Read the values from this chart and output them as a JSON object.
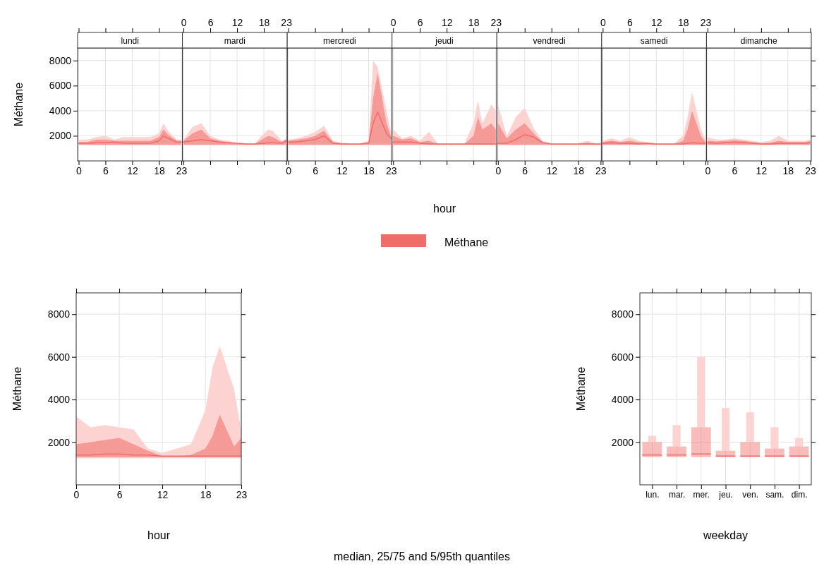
{
  "chart_data": [
    {
      "type": "line",
      "title": "lundi",
      "ylabel": "Méthane",
      "xlim": [
        0,
        23
      ],
      "xticks": [
        0,
        6,
        12,
        18,
        23
      ],
      "ylim": [
        0,
        9000
      ],
      "yticks": [
        2000,
        4000,
        6000,
        8000
      ],
      "grid": true,
      "series": [
        {
          "color": "#fcd3d1",
          "x": [
            0,
            2,
            4,
            6,
            8,
            10,
            12,
            14,
            16,
            18,
            19,
            20,
            22,
            23
          ],
          "values": [
            null,
            null,
            null,
            null,
            null,
            null,
            null,
            null,
            null,
            null,
            null,
            null,
            null,
            null
          ],
          "lower": [
            1250,
            1250,
            1250,
            1250,
            1250,
            1250,
            1250,
            1250,
            1250,
            1250,
            1250,
            1250,
            1250,
            1250
          ],
          "upper": [
            1700,
            1700,
            1900,
            2000,
            1700,
            1900,
            1900,
            1900,
            1900,
            2200,
            3000,
            2400,
            1700,
            1700
          ]
        },
        {
          "color": "#f06c68",
          "x": [
            0,
            2,
            4,
            6,
            8,
            10,
            12,
            14,
            16,
            18,
            19,
            20,
            22,
            23
          ],
          "values": [
            1400,
            1400,
            1450,
            1450,
            1500,
            1400,
            1400,
            1400,
            1400,
            1600,
            2000,
            1800,
            1500,
            1500
          ],
          "lower": [
            1300,
            1300,
            1300,
            1300,
            1300,
            1300,
            1300,
            1300,
            1300,
            1300,
            1300,
            1300,
            1300,
            1300
          ],
          "upper": [
            1500,
            1500,
            1700,
            1700,
            1600,
            1600,
            1600,
            1600,
            1600,
            1900,
            2500,
            2100,
            1600,
            1600
          ]
        }
      ]
    },
    {
      "type": "line",
      "title": "mardi",
      "xlim": [
        0,
        23
      ],
      "xticks": [
        0,
        6,
        12,
        18,
        23
      ],
      "ylim": [
        0,
        9000
      ],
      "yticks": [
        2000,
        4000,
        6000,
        8000
      ],
      "tick_labels": "x",
      "grid": true,
      "series": [
        {
          "color": "#fcd3d1",
          "x": [
            0,
            2,
            4,
            6,
            8,
            10,
            12,
            14,
            16,
            18,
            19,
            20,
            22,
            23
          ],
          "values": [
            null,
            null,
            null,
            null,
            null,
            null,
            null,
            null,
            null,
            null,
            null,
            null,
            null,
            null
          ],
          "lower": [
            1250,
            1250,
            1250,
            1250,
            1250,
            1250,
            1250,
            1250,
            1250,
            1250,
            1250,
            1250,
            1250,
            1250
          ],
          "upper": [
            1700,
            2700,
            3000,
            2000,
            1700,
            1600,
            1450,
            1400,
            1400,
            2200,
            2500,
            2400,
            1600,
            1800
          ]
        },
        {
          "color": "#f06c68",
          "x": [
            0,
            2,
            4,
            6,
            8,
            10,
            12,
            14,
            16,
            18,
            19,
            20,
            22,
            23
          ],
          "values": [
            1500,
            1600,
            1700,
            1600,
            1500,
            1450,
            1400,
            1350,
            1350,
            1400,
            1450,
            1450,
            1400,
            1600
          ],
          "lower": [
            1300,
            1300,
            1300,
            1300,
            1300,
            1300,
            1300,
            1300,
            1300,
            1300,
            1300,
            1300,
            1300,
            1300
          ],
          "upper": [
            1600,
            2200,
            2500,
            1800,
            1600,
            1500,
            1400,
            1350,
            1350,
            1800,
            2000,
            1900,
            1500,
            1700
          ]
        }
      ]
    },
    {
      "type": "line",
      "title": "mercredi",
      "xlim": [
        0,
        23
      ],
      "xticks": [
        0,
        6,
        12,
        18,
        23
      ],
      "ylim": [
        0,
        9000
      ],
      "yticks": [
        2000,
        4000,
        6000,
        8000
      ],
      "tick_labels": "x",
      "grid": true,
      "series": [
        {
          "color": "#fcd3d1",
          "x": [
            0,
            2,
            4,
            6,
            8,
            10,
            12,
            14,
            16,
            18,
            19,
            20,
            22,
            23
          ],
          "values": [
            null,
            null,
            null,
            null,
            null,
            null,
            null,
            null,
            null,
            null,
            null,
            null,
            null,
            null
          ],
          "lower": [
            1250,
            1250,
            1250,
            1250,
            1250,
            1250,
            1250,
            1250,
            1250,
            1250,
            1250,
            1250,
            1250,
            1250
          ],
          "upper": [
            1700,
            1800,
            2000,
            2300,
            2800,
            1600,
            1450,
            1400,
            1400,
            1600,
            8000,
            7500,
            4000,
            2300
          ]
        },
        {
          "color": "#f06c68",
          "x": [
            0,
            2,
            4,
            6,
            8,
            10,
            12,
            14,
            16,
            18,
            19,
            20,
            22,
            23
          ],
          "values": [
            1500,
            1500,
            1600,
            1700,
            2000,
            1400,
            1350,
            1350,
            1350,
            1400,
            3000,
            3900,
            2200,
            1800
          ],
          "lower": [
            1300,
            1300,
            1300,
            1300,
            1300,
            1300,
            1300,
            1300,
            1300,
            1300,
            1300,
            1300,
            1300,
            1300
          ],
          "upper": [
            1600,
            1700,
            1800,
            2000,
            2400,
            1500,
            1400,
            1350,
            1350,
            1500,
            5000,
            7000,
            3000,
            2000
          ]
        }
      ]
    },
    {
      "type": "line",
      "title": "jeudi",
      "xlabel": "hour",
      "xlim": [
        0,
        23
      ],
      "xticks": [
        0,
        6,
        12,
        18,
        23
      ],
      "ylim": [
        0,
        9000
      ],
      "yticks": [
        2000,
        4000,
        6000,
        8000
      ],
      "tick_labels": "x",
      "grid": true,
      "legend": "bottom",
      "series": [
        {
          "color": "#fcd3d1",
          "x": [
            0,
            2,
            4,
            6,
            8,
            10,
            12,
            14,
            16,
            18,
            19,
            20,
            22,
            23
          ],
          "values": [
            null,
            null,
            null,
            null,
            null,
            null,
            null,
            null,
            null,
            null,
            null,
            null,
            null,
            null
          ],
          "lower": [
            1250,
            1250,
            1250,
            1250,
            1250,
            1250,
            1250,
            1250,
            1250,
            1250,
            1250,
            1250,
            1250,
            1250
          ],
          "upper": [
            2500,
            1800,
            2000,
            1600,
            2300,
            1400,
            1400,
            1400,
            1400,
            3000,
            4800,
            3000,
            4500,
            4000
          ]
        },
        {
          "name": "Méthane",
          "color": "#f06c68",
          "x": [
            0,
            2,
            4,
            6,
            8,
            10,
            12,
            14,
            16,
            18,
            19,
            20,
            22,
            23
          ],
          "values": [
            1500,
            1500,
            1500,
            1400,
            1350,
            1350,
            1350,
            1350,
            1350,
            1350,
            1350,
            1350,
            1350,
            1350
          ],
          "lower": [
            1300,
            1300,
            1300,
            1300,
            1300,
            1300,
            1300,
            1300,
            1300,
            1300,
            1300,
            1300,
            1300,
            1300
          ],
          "upper": [
            2000,
            1700,
            1800,
            1500,
            1600,
            1350,
            1350,
            1350,
            1350,
            2000,
            3500,
            2500,
            3000,
            2500
          ]
        }
      ]
    },
    {
      "type": "line",
      "title": "vendredi",
      "xlim": [
        0,
        23
      ],
      "xticks": [
        0,
        6,
        12,
        18,
        23
      ],
      "ylim": [
        0,
        9000
      ],
      "yticks": [
        2000,
        4000,
        6000,
        8000
      ],
      "tick_labels": "x",
      "grid": true,
      "series": [
        {
          "color": "#fcd3d1",
          "x": [
            0,
            2,
            4,
            6,
            8,
            10,
            12,
            14,
            16,
            18,
            19,
            20,
            22,
            23
          ],
          "values": [
            null,
            null,
            null,
            null,
            null,
            null,
            null,
            null,
            null,
            null,
            null,
            null,
            null,
            null
          ],
          "lower": [
            1250,
            1250,
            1250,
            1250,
            1250,
            1250,
            1250,
            1250,
            1250,
            1250,
            1250,
            1250,
            1250,
            1250
          ],
          "upper": [
            4500,
            2000,
            3500,
            4200,
            2600,
            1600,
            1400,
            1400,
            1400,
            1400,
            1500,
            1600,
            1400,
            1400
          ]
        },
        {
          "color": "#f06c68",
          "x": [
            0,
            2,
            4,
            6,
            8,
            10,
            12,
            14,
            16,
            18,
            19,
            20,
            22,
            23
          ],
          "values": [
            1400,
            1400,
            1700,
            2100,
            1900,
            1450,
            1350,
            1350,
            1350,
            1350,
            1350,
            1350,
            1350,
            1350
          ],
          "lower": [
            1300,
            1300,
            1300,
            1300,
            1300,
            1300,
            1300,
            1300,
            1300,
            1300,
            1300,
            1300,
            1300,
            1300
          ],
          "upper": [
            3000,
            1800,
            2500,
            3000,
            2200,
            1500,
            1350,
            1350,
            1350,
            1350,
            1400,
            1450,
            1350,
            1350
          ]
        }
      ]
    },
    {
      "type": "line",
      "title": "samedi",
      "xlim": [
        0,
        23
      ],
      "xticks": [
        0,
        6,
        12,
        18,
        23
      ],
      "ylim": [
        0,
        9000
      ],
      "yticks": [
        2000,
        4000,
        6000,
        8000
      ],
      "tick_labels": "x",
      "grid": true,
      "series": [
        {
          "color": "#fcd3d1",
          "x": [
            0,
            2,
            4,
            6,
            8,
            10,
            12,
            14,
            16,
            18,
            19,
            20,
            22,
            23
          ],
          "values": [
            null,
            null,
            null,
            null,
            null,
            null,
            null,
            null,
            null,
            null,
            null,
            null,
            null,
            null
          ],
          "lower": [
            1250,
            1250,
            1250,
            1250,
            1250,
            1250,
            1250,
            1250,
            1250,
            1250,
            1250,
            1250,
            1250,
            1250
          ],
          "upper": [
            1600,
            1800,
            1600,
            1900,
            1600,
            1500,
            1400,
            1400,
            1400,
            2000,
            3500,
            5500,
            2500,
            1700
          ]
        },
        {
          "color": "#f06c68",
          "x": [
            0,
            2,
            4,
            6,
            8,
            10,
            12,
            14,
            16,
            18,
            19,
            20,
            22,
            23
          ],
          "values": [
            1400,
            1450,
            1400,
            1400,
            1350,
            1400,
            1350,
            1350,
            1350,
            1350,
            1400,
            1450,
            1400,
            1400
          ],
          "lower": [
            1300,
            1300,
            1300,
            1300,
            1300,
            1300,
            1300,
            1300,
            1300,
            1300,
            1300,
            1300,
            1300,
            1300
          ],
          "upper": [
            1500,
            1600,
            1500,
            1600,
            1500,
            1400,
            1350,
            1350,
            1350,
            1600,
            2500,
            4000,
            2000,
            1500
          ]
        }
      ]
    },
    {
      "type": "line",
      "title": "dimanche",
      "xlim": [
        0,
        23
      ],
      "xticks": [
        0,
        6,
        12,
        18,
        23
      ],
      "ylim": [
        0,
        9000
      ],
      "yticks": [
        2000,
        4000,
        6000,
        8000
      ],
      "tick_labels": "x",
      "grid": true,
      "series": [
        {
          "color": "#fcd3d1",
          "x": [
            0,
            2,
            4,
            6,
            8,
            10,
            12,
            14,
            16,
            18,
            19,
            20,
            22,
            23
          ],
          "values": [
            null,
            null,
            null,
            null,
            null,
            null,
            null,
            null,
            null,
            null,
            null,
            null,
            null,
            null
          ],
          "lower": [
            1250,
            1250,
            1250,
            1250,
            1250,
            1250,
            1250,
            1250,
            1250,
            1250,
            1250,
            1250,
            1250,
            1250
          ],
          "upper": [
            1900,
            1700,
            1700,
            1800,
            1700,
            1600,
            1500,
            1600,
            2000,
            1600,
            1600,
            1600,
            1600,
            1700
          ]
        },
        {
          "color": "#f06c68",
          "x": [
            0,
            2,
            4,
            6,
            8,
            10,
            12,
            14,
            16,
            18,
            19,
            20,
            22,
            23
          ],
          "values": [
            1450,
            1400,
            1450,
            1500,
            1450,
            1400,
            1350,
            1350,
            1400,
            1400,
            1400,
            1400,
            1400,
            1450
          ],
          "lower": [
            1300,
            1300,
            1300,
            1300,
            1300,
            1300,
            1300,
            1300,
            1300,
            1300,
            1300,
            1300,
            1300,
            1300
          ],
          "upper": [
            1600,
            1550,
            1600,
            1650,
            1600,
            1500,
            1400,
            1450,
            1600,
            1500,
            1500,
            1500,
            1500,
            1600
          ]
        }
      ]
    },
    {
      "type": "line",
      "xlabel": "hour",
      "ylabel": "Méthane",
      "xlim": [
        0,
        23
      ],
      "xticks": [
        0,
        6,
        12,
        18,
        23
      ],
      "ylim": [
        0,
        9000
      ],
      "yticks": [
        2000,
        4000,
        6000,
        8000
      ],
      "grid": true,
      "annotations": [
        "median, 25/75 and 5/95th quantiles"
      ],
      "series": [
        {
          "color": "#fcd3d1",
          "x": [
            0,
            2,
            4,
            6,
            8,
            10,
            12,
            14,
            16,
            18,
            19,
            20,
            22,
            23
          ],
          "values": [
            null,
            null,
            null,
            null,
            null,
            null,
            null,
            null,
            null,
            null,
            null,
            null,
            null,
            null
          ],
          "lower": [
            1250,
            1250,
            1250,
            1250,
            1250,
            1250,
            1250,
            1250,
            1250,
            1250,
            1250,
            1250,
            1250,
            1250
          ],
          "upper": [
            3200,
            2700,
            2800,
            2700,
            2600,
            1700,
            1500,
            1700,
            1900,
            3500,
            5500,
            6500,
            4500,
            2500
          ]
        },
        {
          "color": "#f06c68",
          "x": [
            0,
            2,
            4,
            6,
            8,
            10,
            12,
            14,
            16,
            18,
            19,
            20,
            22,
            23
          ],
          "values": [
            1400,
            1400,
            1450,
            1450,
            1400,
            1400,
            1350,
            1350,
            1350,
            1350,
            1350,
            1350,
            1350,
            1350
          ],
          "lower": [
            1300,
            1300,
            1300,
            1300,
            1300,
            1300,
            1300,
            1300,
            1300,
            1300,
            1300,
            1300,
            1300,
            1300
          ],
          "upper": [
            1900,
            2000,
            2100,
            2200,
            1900,
            1600,
            1350,
            1350,
            1400,
            1700,
            2300,
            3300,
            1800,
            2200
          ]
        }
      ]
    },
    {
      "type": "box",
      "xlabel": "weekday",
      "ylabel": "Méthane",
      "categories": [
        "lun.",
        "mar.",
        "mer.",
        "jeu.",
        "ven.",
        "sam.",
        "dim."
      ],
      "ylim": [
        0,
        9000
      ],
      "yticks": [
        2000,
        4000,
        6000,
        8000
      ],
      "grid": true,
      "color": "#f06c68",
      "boxes": [
        {
          "low": 1300,
          "q1": 1300,
          "median": 1400,
          "q3": 2000,
          "high": 2300
        },
        {
          "low": 1300,
          "q1": 1300,
          "median": 1400,
          "q3": 1800,
          "high": 2800
        },
        {
          "low": 1300,
          "q1": 1300,
          "median": 1450,
          "q3": 2700,
          "high": 6000
        },
        {
          "low": 1300,
          "q1": 1300,
          "median": 1350,
          "q3": 1600,
          "high": 3600
        },
        {
          "low": 1300,
          "q1": 1300,
          "median": 1350,
          "q3": 2000,
          "high": 3400
        },
        {
          "low": 1300,
          "q1": 1300,
          "median": 1350,
          "q3": 1700,
          "high": 2700
        },
        {
          "low": 1300,
          "q1": 1300,
          "median": 1350,
          "q3": 1800,
          "high": 2200
        }
      ]
    }
  ]
}
